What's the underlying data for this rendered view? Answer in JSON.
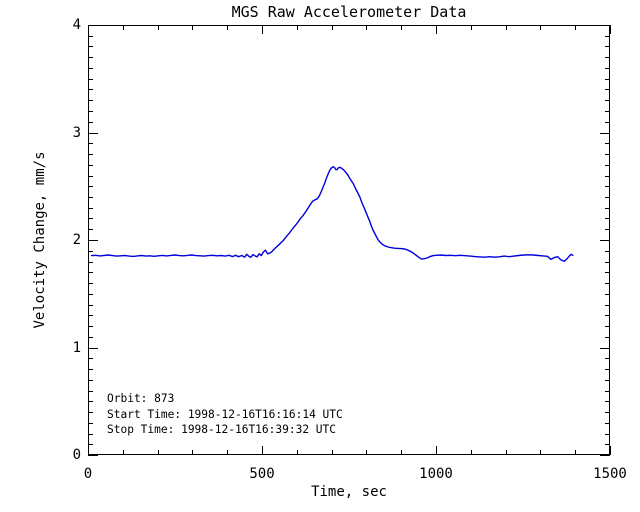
{
  "page": {
    "background": "#ffffff",
    "text_color": "#000000"
  },
  "chart_data": {
    "type": "line",
    "title": "MGS Raw Accelerometer Data",
    "grid": false,
    "legend": "none",
    "line_color": "#0000dd",
    "axis_color": "#000000",
    "x_axis": {
      "label": "Time, sec",
      "lim": [
        0,
        1500
      ],
      "tick_values": [
        0,
        500,
        1000,
        1500
      ],
      "tick_labels": [
        "0",
        "500",
        "1000",
        "1500"
      ],
      "minor_step": 100
    },
    "y_axis": {
      "label": "Velocity Change, mm/s",
      "lim": [
        0,
        4
      ],
      "tick_values": [
        0,
        1,
        2,
        3,
        4
      ],
      "tick_labels": [
        "0",
        "1",
        "2",
        "3",
        "4"
      ],
      "minor_step": 0.1
    },
    "annotation_lines": [
      "Orbit:      873",
      "Start Time: 1998-12-16T16:16:14 UTC",
      "Stop Time: 1998-12-16T16:39:32 UTC"
    ],
    "series": [
      {
        "points": [
          [
            10,
            1.855
          ],
          [
            22,
            1.858
          ],
          [
            34,
            1.852
          ],
          [
            46,
            1.856
          ],
          [
            58,
            1.86
          ],
          [
            70,
            1.855
          ],
          [
            82,
            1.85
          ],
          [
            94,
            1.853
          ],
          [
            106,
            1.856
          ],
          [
            118,
            1.85
          ],
          [
            130,
            1.847
          ],
          [
            142,
            1.852
          ],
          [
            154,
            1.856
          ],
          [
            166,
            1.85
          ],
          [
            178,
            1.853
          ],
          [
            190,
            1.848
          ],
          [
            202,
            1.853
          ],
          [
            214,
            1.857
          ],
          [
            226,
            1.852
          ],
          [
            238,
            1.857
          ],
          [
            250,
            1.86
          ],
          [
            262,
            1.855
          ],
          [
            274,
            1.853
          ],
          [
            286,
            1.857
          ],
          [
            298,
            1.86
          ],
          [
            310,
            1.855
          ],
          [
            322,
            1.853
          ],
          [
            334,
            1.85
          ],
          [
            346,
            1.855
          ],
          [
            358,
            1.858
          ],
          [
            370,
            1.853
          ],
          [
            382,
            1.856
          ],
          [
            394,
            1.85
          ],
          [
            406,
            1.858
          ],
          [
            415,
            1.846
          ],
          [
            424,
            1.858
          ],
          [
            433,
            1.845
          ],
          [
            442,
            1.856
          ],
          [
            450,
            1.84
          ],
          [
            456,
            1.868
          ],
          [
            462,
            1.848
          ],
          [
            468,
            1.84
          ],
          [
            474,
            1.864
          ],
          [
            480,
            1.852
          ],
          [
            486,
            1.843
          ],
          [
            492,
            1.872
          ],
          [
            498,
            1.855
          ],
          [
            504,
            1.888
          ],
          [
            510,
            1.905
          ],
          [
            516,
            1.872
          ],
          [
            522,
            1.878
          ],
          [
            528,
            1.89
          ],
          [
            534,
            1.912
          ],
          [
            540,
            1.93
          ],
          [
            547,
            1.952
          ],
          [
            553,
            1.97
          ],
          [
            560,
            1.992
          ],
          [
            566,
            2.016
          ],
          [
            572,
            2.04
          ],
          [
            579,
            2.066
          ],
          [
            585,
            2.093
          ],
          [
            591,
            2.118
          ],
          [
            598,
            2.144
          ],
          [
            604,
            2.17
          ],
          [
            610,
            2.198
          ],
          [
            617,
            2.224
          ],
          [
            623,
            2.25
          ],
          [
            629,
            2.28
          ],
          [
            634,
            2.305
          ],
          [
            638,
            2.326
          ],
          [
            643,
            2.35
          ],
          [
            647,
            2.366
          ],
          [
            652,
            2.373
          ],
          [
            657,
            2.38
          ],
          [
            662,
            2.396
          ],
          [
            666,
            2.42
          ],
          [
            671,
            2.456
          ],
          [
            676,
            2.496
          ],
          [
            681,
            2.536
          ],
          [
            685,
            2.574
          ],
          [
            690,
            2.614
          ],
          [
            695,
            2.65
          ],
          [
            700,
            2.672
          ],
          [
            705,
            2.682
          ],
          [
            709,
            2.673
          ],
          [
            712,
            2.655
          ],
          [
            716,
            2.656
          ],
          [
            719,
            2.671
          ],
          [
            724,
            2.676
          ],
          [
            728,
            2.669
          ],
          [
            733,
            2.657
          ],
          [
            738,
            2.64
          ],
          [
            743,
            2.62
          ],
          [
            748,
            2.598
          ],
          [
            752,
            2.574
          ],
          [
            757,
            2.55
          ],
          [
            762,
            2.526
          ],
          [
            766,
            2.497
          ],
          [
            771,
            2.465
          ],
          [
            776,
            2.434
          ],
          [
            781,
            2.402
          ],
          [
            785,
            2.365
          ],
          [
            790,
            2.326
          ],
          [
            795,
            2.287
          ],
          [
            800,
            2.248
          ],
          [
            805,
            2.209
          ],
          [
            810,
            2.17
          ],
          [
            814,
            2.131
          ],
          [
            819,
            2.093
          ],
          [
            824,
            2.06
          ],
          [
            829,
            2.03
          ],
          [
            833,
            2.005
          ],
          [
            838,
            1.984
          ],
          [
            845,
            1.962
          ],
          [
            853,
            1.946
          ],
          [
            862,
            1.935
          ],
          [
            872,
            1.928
          ],
          [
            881,
            1.924
          ],
          [
            891,
            1.922
          ],
          [
            900,
            1.92
          ],
          [
            910,
            1.916
          ],
          [
            920,
            1.905
          ],
          [
            930,
            1.888
          ],
          [
            940,
            1.866
          ],
          [
            950,
            1.84
          ],
          [
            958,
            1.822
          ],
          [
            966,
            1.826
          ],
          [
            974,
            1.833
          ],
          [
            982,
            1.845
          ],
          [
            991,
            1.854
          ],
          [
            1000,
            1.858
          ],
          [
            1014,
            1.86
          ],
          [
            1028,
            1.856
          ],
          [
            1042,
            1.858
          ],
          [
            1056,
            1.854
          ],
          [
            1070,
            1.858
          ],
          [
            1084,
            1.854
          ],
          [
            1098,
            1.85
          ],
          [
            1112,
            1.846
          ],
          [
            1126,
            1.843
          ],
          [
            1140,
            1.84
          ],
          [
            1154,
            1.845
          ],
          [
            1168,
            1.84
          ],
          [
            1182,
            1.844
          ],
          [
            1196,
            1.85
          ],
          [
            1210,
            1.845
          ],
          [
            1224,
            1.85
          ],
          [
            1238,
            1.856
          ],
          [
            1252,
            1.86
          ],
          [
            1266,
            1.862
          ],
          [
            1280,
            1.86
          ],
          [
            1294,
            1.856
          ],
          [
            1308,
            1.852
          ],
          [
            1320,
            1.848
          ],
          [
            1330,
            1.82
          ],
          [
            1340,
            1.836
          ],
          [
            1350,
            1.845
          ],
          [
            1358,
            1.818
          ],
          [
            1368,
            1.802
          ],
          [
            1376,
            1.822
          ],
          [
            1383,
            1.85
          ],
          [
            1388,
            1.866
          ],
          [
            1393,
            1.858
          ]
        ]
      }
    ]
  }
}
